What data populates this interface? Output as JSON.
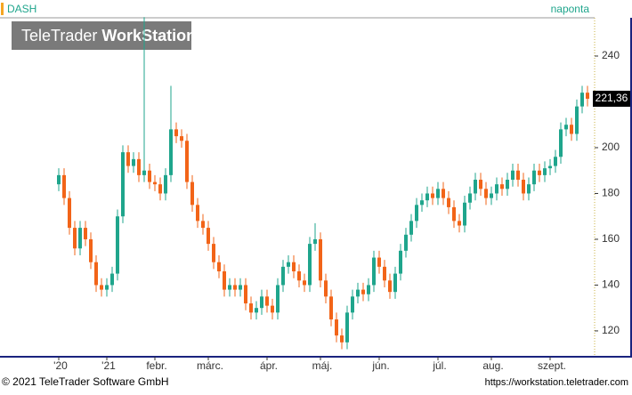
{
  "chart_data": {
    "type": "candlestick",
    "title": "DASH",
    "interval": "naponta",
    "watermark": {
      "brand": "TeleTrader",
      "product": "WorkStation"
    },
    "categories": [
      "'20",
      null,
      null,
      null,
      null,
      null,
      null,
      null,
      null,
      "'21",
      null,
      null,
      null,
      null,
      null,
      null,
      null,
      null,
      "febr.",
      null,
      null,
      null,
      null,
      null,
      null,
      null,
      null,
      null,
      "márc.",
      null,
      null,
      null,
      null,
      null,
      null,
      null,
      null,
      null,
      null,
      "ápr.",
      null,
      null,
      null,
      null,
      null,
      null,
      null,
      null,
      null,
      "máj.",
      null,
      null,
      null,
      null,
      null,
      null,
      null,
      null,
      null,
      null,
      "jún.",
      null,
      null,
      null,
      null,
      null,
      null,
      null,
      null,
      null,
      null,
      "júl.",
      null,
      null,
      null,
      null,
      null,
      null,
      null,
      null,
      null,
      "aug.",
      null,
      null,
      null,
      null,
      null,
      null,
      null,
      null,
      null,
      null,
      "szept.",
      null,
      null,
      null,
      null,
      null,
      null,
      null
    ],
    "open": [
      184,
      188,
      178,
      165,
      156,
      165,
      160,
      150,
      140,
      138,
      140,
      145,
      170,
      198,
      192,
      195,
      188,
      190,
      185,
      184,
      180,
      188,
      208,
      205,
      203,
      185,
      175,
      168,
      165,
      158,
      150,
      146,
      138,
      140,
      138,
      140,
      132,
      128,
      130,
      135,
      131,
      128,
      140,
      148,
      150,
      146,
      142,
      140,
      158,
      160,
      142,
      135,
      125,
      118,
      115,
      128,
      135,
      138,
      136,
      140,
      152,
      148,
      142,
      137,
      145,
      155,
      162,
      168,
      175,
      177,
      180,
      178,
      182,
      178,
      174,
      168,
      166,
      176,
      180,
      186,
      182,
      178,
      180,
      184,
      182,
      186,
      190,
      186,
      180,
      184,
      190,
      188,
      191,
      192,
      196,
      208,
      210,
      206,
      218,
      224
    ],
    "high": [
      191,
      191,
      181,
      168,
      168,
      168,
      163,
      153,
      143,
      143,
      148,
      173,
      201,
      201,
      198,
      198,
      257,
      193,
      188,
      187,
      191,
      227,
      211,
      208,
      206,
      188,
      178,
      171,
      168,
      161,
      153,
      149,
      143,
      143,
      143,
      143,
      135,
      133,
      138,
      138,
      134,
      143,
      151,
      153,
      153,
      149,
      145,
      161,
      167,
      163,
      145,
      138,
      128,
      121,
      131,
      138,
      141,
      141,
      143,
      155,
      155,
      151,
      145,
      148,
      158,
      165,
      171,
      178,
      180,
      183,
      183,
      185,
      185,
      181,
      177,
      171,
      179,
      183,
      189,
      189,
      185,
      183,
      187,
      187,
      189,
      193,
      193,
      189,
      187,
      193,
      193,
      194,
      195,
      199,
      211,
      213,
      213,
      221,
      227,
      227
    ],
    "low": [
      181,
      175,
      162,
      153,
      153,
      157,
      147,
      137,
      135,
      135,
      137,
      142,
      167,
      189,
      189,
      185,
      185,
      182,
      181,
      177,
      177,
      185,
      202,
      200,
      182,
      172,
      165,
      162,
      155,
      147,
      143,
      135,
      135,
      135,
      135,
      129,
      125,
      125,
      127,
      128,
      125,
      125,
      137,
      145,
      143,
      139,
      137,
      137,
      155,
      139,
      132,
      122,
      115,
      112,
      112,
      125,
      132,
      133,
      133,
      137,
      145,
      139,
      134,
      134,
      142,
      152,
      159,
      165,
      172,
      174,
      175,
      175,
      175,
      171,
      165,
      163,
      163,
      173,
      177,
      179,
      175,
      175,
      177,
      179,
      179,
      183,
      183,
      177,
      177,
      181,
      185,
      185,
      188,
      189,
      193,
      205,
      203,
      203,
      215,
      218
    ],
    "close": [
      188,
      178,
      165,
      156,
      165,
      160,
      150,
      140,
      138,
      140,
      145,
      170,
      198,
      192,
      195,
      188,
      190,
      185,
      184,
      180,
      188,
      208,
      205,
      203,
      185,
      175,
      168,
      165,
      158,
      150,
      146,
      138,
      140,
      138,
      140,
      132,
      128,
      130,
      135,
      131,
      128,
      140,
      148,
      150,
      146,
      142,
      140,
      158,
      160,
      142,
      135,
      125,
      118,
      115,
      128,
      135,
      138,
      136,
      140,
      152,
      148,
      142,
      137,
      145,
      155,
      162,
      168,
      175,
      177,
      180,
      178,
      182,
      178,
      174,
      168,
      166,
      176,
      180,
      186,
      182,
      178,
      180,
      184,
      182,
      186,
      190,
      186,
      180,
      184,
      190,
      188,
      191,
      192,
      196,
      208,
      210,
      206,
      218,
      224,
      221.36
    ],
    "last_close": {
      "value": 221.36,
      "label": "221,36"
    },
    "up_color": "#1fa58c",
    "down_color": "#f26418",
    "ylim": [
      109.1,
      256.7
    ],
    "yticks": [
      120,
      140,
      160,
      180,
      200,
      220,
      240
    ]
  },
  "footer": {
    "copyright": "© 2021  TeleTrader Software GmbH",
    "url": "https://workstation.teletrader.com"
  }
}
